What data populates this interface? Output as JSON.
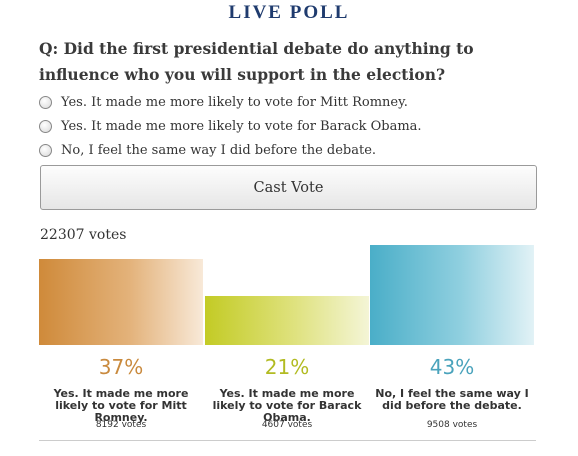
{
  "poll": {
    "title": "LIVE POLL",
    "question": "Q: Did the first presidential debate do anything to influence who you will support in the election?",
    "options": [
      "Yes. It made me more likely to vote for Mitt Romney.",
      "Yes. It made me more likely to vote for Barack Obama.",
      "No, I feel the same way I did before the debate."
    ],
    "cast_button": "Cast Vote",
    "total_votes": "22307 votes"
  },
  "chart_data": {
    "type": "bar",
    "categories": [
      "Yes. It made me more likely to vote for Mitt Romney.",
      "Yes. It made me more likely to vote for Barack Obama.",
      "No, I feel the same way I did before the debate."
    ],
    "values": [
      37,
      21,
      43
    ],
    "percent_labels": [
      "37%",
      "21%",
      "43%"
    ],
    "vote_counts": [
      "8192 votes",
      "4607 votes",
      "9508 votes"
    ],
    "colors": [
      "#cf8a3a",
      "#c3cb25",
      "#4aaec8"
    ],
    "ylim": [
      0,
      43
    ]
  }
}
